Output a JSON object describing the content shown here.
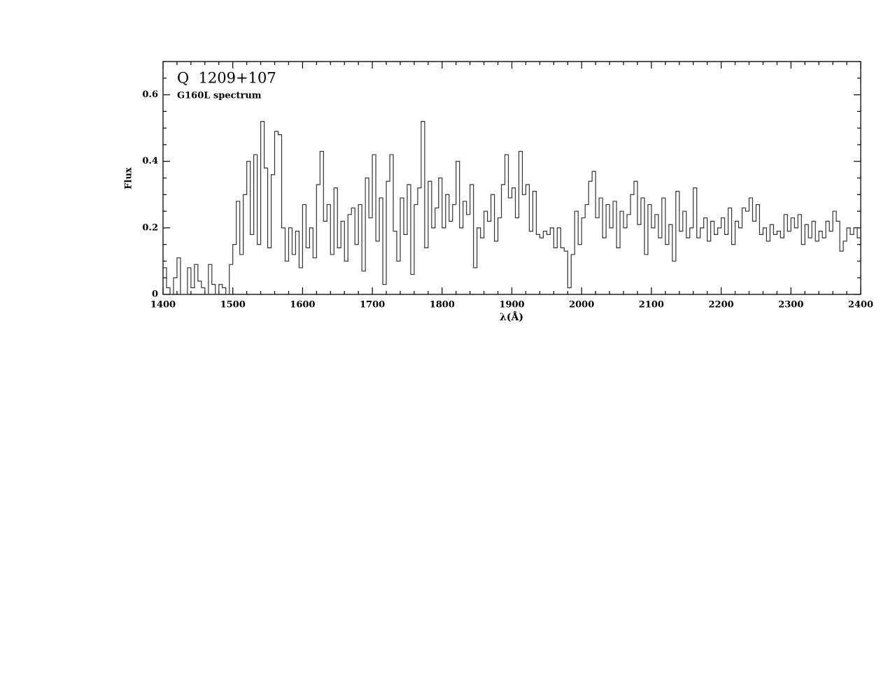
{
  "chart_data": {
    "type": "step",
    "title": "Q  1209+107",
    "subtitle": "G160L spectrum",
    "xlabel": "λ(Å)",
    "ylabel": "Flux",
    "xlim": [
      1400,
      2400
    ],
    "ylim": [
      0,
      0.7
    ],
    "xticks": [
      1400,
      1500,
      1600,
      1700,
      1800,
      1900,
      2000,
      2100,
      2200,
      2300,
      2400
    ],
    "yticks": [
      0,
      0.2,
      0.4,
      0.6
    ],
    "color": "#333333",
    "x": [
      1400,
      1405,
      1410,
      1415,
      1420,
      1425,
      1430,
      1435,
      1440,
      1445,
      1450,
      1455,
      1460,
      1465,
      1470,
      1475,
      1480,
      1485,
      1490,
      1495,
      1500,
      1505,
      1510,
      1515,
      1520,
      1525,
      1530,
      1535,
      1540,
      1545,
      1550,
      1555,
      1560,
      1565,
      1570,
      1575,
      1580,
      1585,
      1590,
      1595,
      1600,
      1605,
      1610,
      1615,
      1620,
      1625,
      1630,
      1635,
      1640,
      1645,
      1650,
      1655,
      1660,
      1665,
      1670,
      1675,
      1680,
      1685,
      1690,
      1695,
      1700,
      1705,
      1710,
      1715,
      1720,
      1725,
      1730,
      1735,
      1740,
      1745,
      1750,
      1755,
      1760,
      1765,
      1770,
      1775,
      1780,
      1785,
      1790,
      1795,
      1800,
      1805,
      1810,
      1815,
      1820,
      1825,
      1830,
      1835,
      1840,
      1845,
      1850,
      1855,
      1860,
      1865,
      1870,
      1875,
      1880,
      1885,
      1890,
      1895,
      1900,
      1905,
      1910,
      1915,
      1920,
      1925,
      1930,
      1935,
      1940,
      1945,
      1950,
      1955,
      1960,
      1965,
      1970,
      1975,
      1980,
      1985,
      1990,
      1995,
      2000,
      2005,
      2010,
      2015,
      2020,
      2025,
      2030,
      2035,
      2040,
      2045,
      2050,
      2055,
      2060,
      2065,
      2070,
      2075,
      2080,
      2085,
      2090,
      2095,
      2100,
      2105,
      2110,
      2115,
      2120,
      2125,
      2130,
      2135,
      2140,
      2145,
      2150,
      2155,
      2160,
      2165,
      2170,
      2175,
      2180,
      2185,
      2190,
      2195,
      2200,
      2205,
      2210,
      2215,
      2220,
      2225,
      2230,
      2235,
      2240,
      2245,
      2250,
      2255,
      2260,
      2265,
      2270,
      2275,
      2280,
      2285,
      2290,
      2295,
      2300,
      2305,
      2310,
      2315,
      2320,
      2325,
      2330,
      2335,
      2340,
      2345,
      2350,
      2355,
      2360,
      2365,
      2370,
      2375,
      2380,
      2385,
      2390,
      2395
    ],
    "values": [
      0.08,
      0.02,
      0.0,
      0.05,
      0.11,
      0.0,
      0.0,
      0.08,
      0.02,
      0.09,
      0.04,
      0.02,
      0.0,
      0.09,
      0.03,
      0.0,
      0.03,
      0.02,
      0.0,
      0.09,
      0.15,
      0.28,
      0.12,
      0.3,
      0.4,
      0.18,
      0.42,
      0.15,
      0.52,
      0.38,
      0.14,
      0.36,
      0.49,
      0.48,
      0.2,
      0.1,
      0.2,
      0.12,
      0.19,
      0.08,
      0.27,
      0.14,
      0.2,
      0.11,
      0.33,
      0.43,
      0.22,
      0.27,
      0.12,
      0.32,
      0.14,
      0.22,
      0.1,
      0.24,
      0.26,
      0.15,
      0.27,
      0.07,
      0.35,
      0.23,
      0.42,
      0.16,
      0.29,
      0.03,
      0.34,
      0.42,
      0.19,
      0.1,
      0.29,
      0.18,
      0.33,
      0.06,
      0.27,
      0.32,
      0.52,
      0.14,
      0.34,
      0.2,
      0.26,
      0.35,
      0.2,
      0.3,
      0.22,
      0.27,
      0.4,
      0.2,
      0.28,
      0.24,
      0.33,
      0.08,
      0.2,
      0.17,
      0.25,
      0.22,
      0.3,
      0.16,
      0.23,
      0.33,
      0.42,
      0.29,
      0.32,
      0.23,
      0.43,
      0.3,
      0.33,
      0.19,
      0.31,
      0.18,
      0.17,
      0.19,
      0.18,
      0.2,
      0.14,
      0.2,
      0.14,
      0.13,
      0.02,
      0.12,
      0.25,
      0.15,
      0.23,
      0.27,
      0.34,
      0.37,
      0.23,
      0.29,
      0.17,
      0.27,
      0.2,
      0.28,
      0.14,
      0.25,
      0.2,
      0.24,
      0.3,
      0.34,
      0.21,
      0.29,
      0.12,
      0.27,
      0.2,
      0.24,
      0.17,
      0.29,
      0.15,
      0.21,
      0.1,
      0.31,
      0.19,
      0.25,
      0.17,
      0.2,
      0.32,
      0.17,
      0.2,
      0.23,
      0.16,
      0.22,
      0.18,
      0.2,
      0.23,
      0.18,
      0.26,
      0.15,
      0.22,
      0.2,
      0.26,
      0.25,
      0.29,
      0.22,
      0.27,
      0.18,
      0.2,
      0.16,
      0.21,
      0.18,
      0.19,
      0.17,
      0.24,
      0.19,
      0.23,
      0.2,
      0.24,
      0.15,
      0.21,
      0.17,
      0.22,
      0.16,
      0.19,
      0.17,
      0.22,
      0.19,
      0.25,
      0.22,
      0.13,
      0.16,
      0.2,
      0.18,
      0.2,
      0.17
    ]
  }
}
